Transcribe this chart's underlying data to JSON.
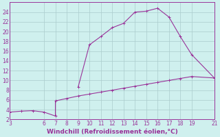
{
  "xlabel": "Windchill (Refroidissement éolien,°C)",
  "bg_color": "#cff0ee",
  "grid_color": "#aacccc",
  "line_color": "#993399",
  "spine_color": "#993399",
  "curve1_x": [
    3,
    4,
    5,
    6,
    7,
    7,
    8,
    9,
    10,
    11,
    12,
    13,
    14,
    15,
    16,
    17,
    18,
    19,
    21
  ],
  "curve1_y": [
    3.5,
    3.7,
    3.8,
    3.5,
    2.7,
    5.8,
    6.3,
    6.8,
    7.2,
    7.6,
    8.0,
    8.4,
    8.8,
    9.2,
    9.6,
    10.0,
    10.4,
    10.8,
    10.5
  ],
  "curve2_x": [
    9,
    10,
    11,
    12,
    13,
    14,
    15,
    16,
    17,
    18,
    19,
    21
  ],
  "curve2_y": [
    8.6,
    17.3,
    19.0,
    20.8,
    21.7,
    24.0,
    24.2,
    24.8,
    23.0,
    19.0,
    15.3,
    10.5
  ],
  "xlim": [
    3,
    21
  ],
  "ylim": [
    2,
    26
  ],
  "xticks": [
    3,
    6,
    7,
    8,
    9,
    10,
    11,
    12,
    13,
    14,
    15,
    16,
    17,
    18,
    19,
    21
  ],
  "yticks": [
    2,
    4,
    6,
    8,
    10,
    12,
    14,
    16,
    18,
    20,
    22,
    24
  ],
  "tick_fontsize": 5.5,
  "xlabel_fontsize": 6.5
}
